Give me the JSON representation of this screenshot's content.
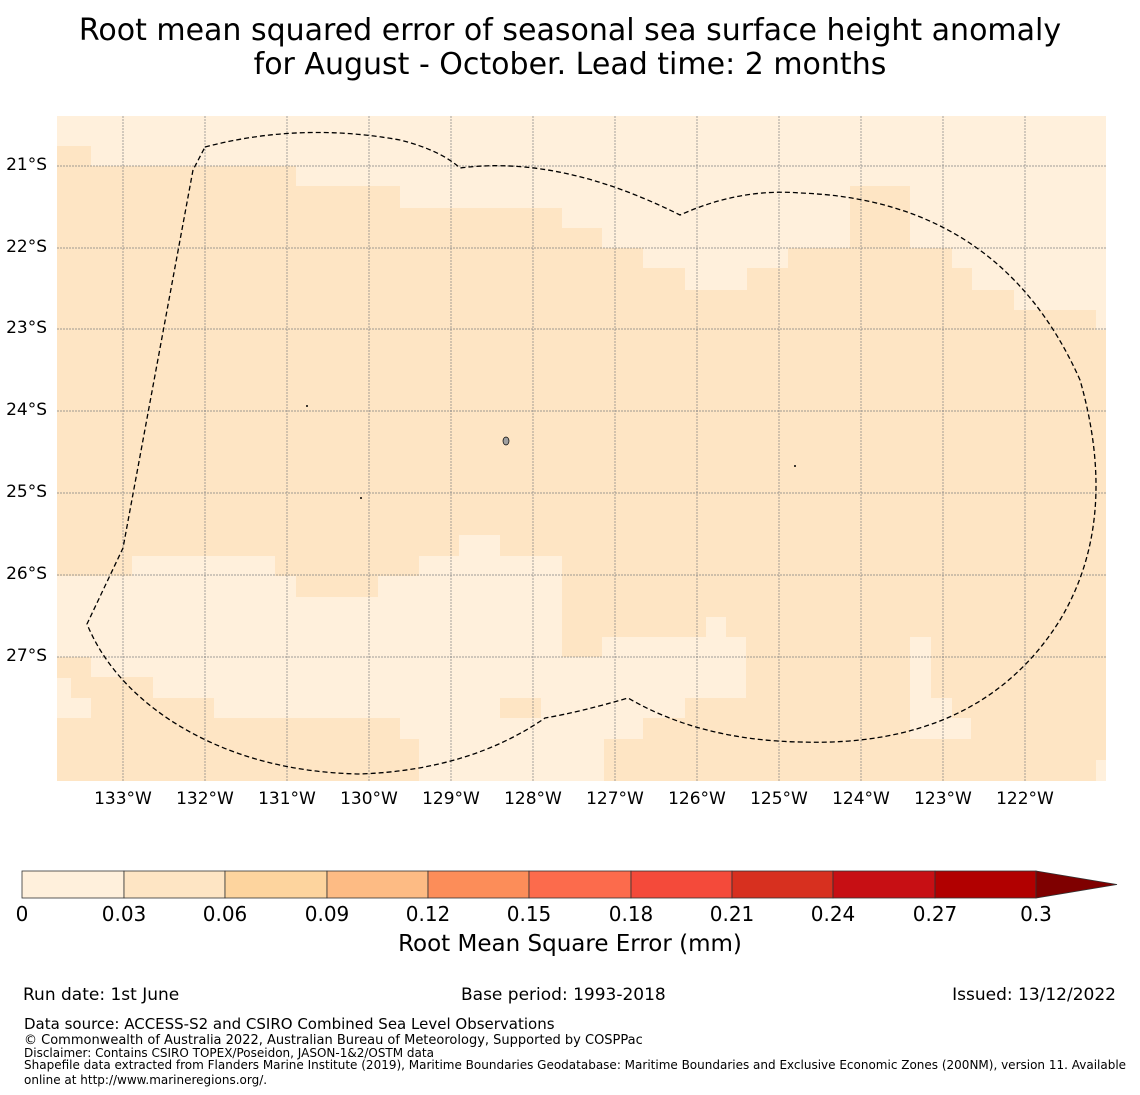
{
  "title": {
    "line1": "Root mean squared error of seasonal sea surface height anomaly",
    "line2": "for August - October. Lead time: 2 months"
  },
  "map": {
    "lat_labels": [
      "21°S",
      "22°S",
      "23°S",
      "24°S",
      "25°S",
      "26°S",
      "27°S"
    ],
    "lon_labels": [
      "133°W",
      "132°W",
      "131°W",
      "130°W",
      "129°W",
      "128°W",
      "127°W",
      "126°W",
      "125°W",
      "124°W",
      "123°W",
      "122°W"
    ],
    "colors": {
      "band_0": "#fff0dc",
      "band_1": "#fee5c4",
      "grid": "#808080",
      "boundary": "#000000",
      "island": "#a0a0a0"
    }
  },
  "colorbar": {
    "ticks": [
      "0",
      "0.03",
      "0.06",
      "0.09",
      "0.12",
      "0.15",
      "0.18",
      "0.21",
      "0.24",
      "0.27",
      "0.3"
    ],
    "colors": [
      "#fff0dc",
      "#fee5c4",
      "#fdd49e",
      "#fdbb84",
      "#fc8d59",
      "#fc6b4c",
      "#f44a3a",
      "#d7301f",
      "#c70f14",
      "#b10000",
      "#7f0000"
    ],
    "label": "Root Mean Square Error (mm)"
  },
  "footer": {
    "run_date": "Run date: 1st June",
    "base_period": "Base period: 1993-2018",
    "issued": "Issued: 13/12/2022",
    "data_source": "Data source: ACCESS-S2 and CSIRO Combined Sea Level Observations",
    "copyright": "© Commonwealth of Australia 2022, Australian Bureau of Meteorology, Supported by COSPPac",
    "disclaimer": "Disclaimer: Contains CSIRO TOPEX/Poseidon, JASON-1&2/OSTM data",
    "shapefile_line1": "Shapefile data extracted from Flanders Marine Institute (2019), Maritime Boundaries Geodatabase: Maritime Boundaries and Exclusive Economic Zones (200NM), version 11. Available",
    "shapefile_line2": "online at http://www.marineregions.org/."
  }
}
